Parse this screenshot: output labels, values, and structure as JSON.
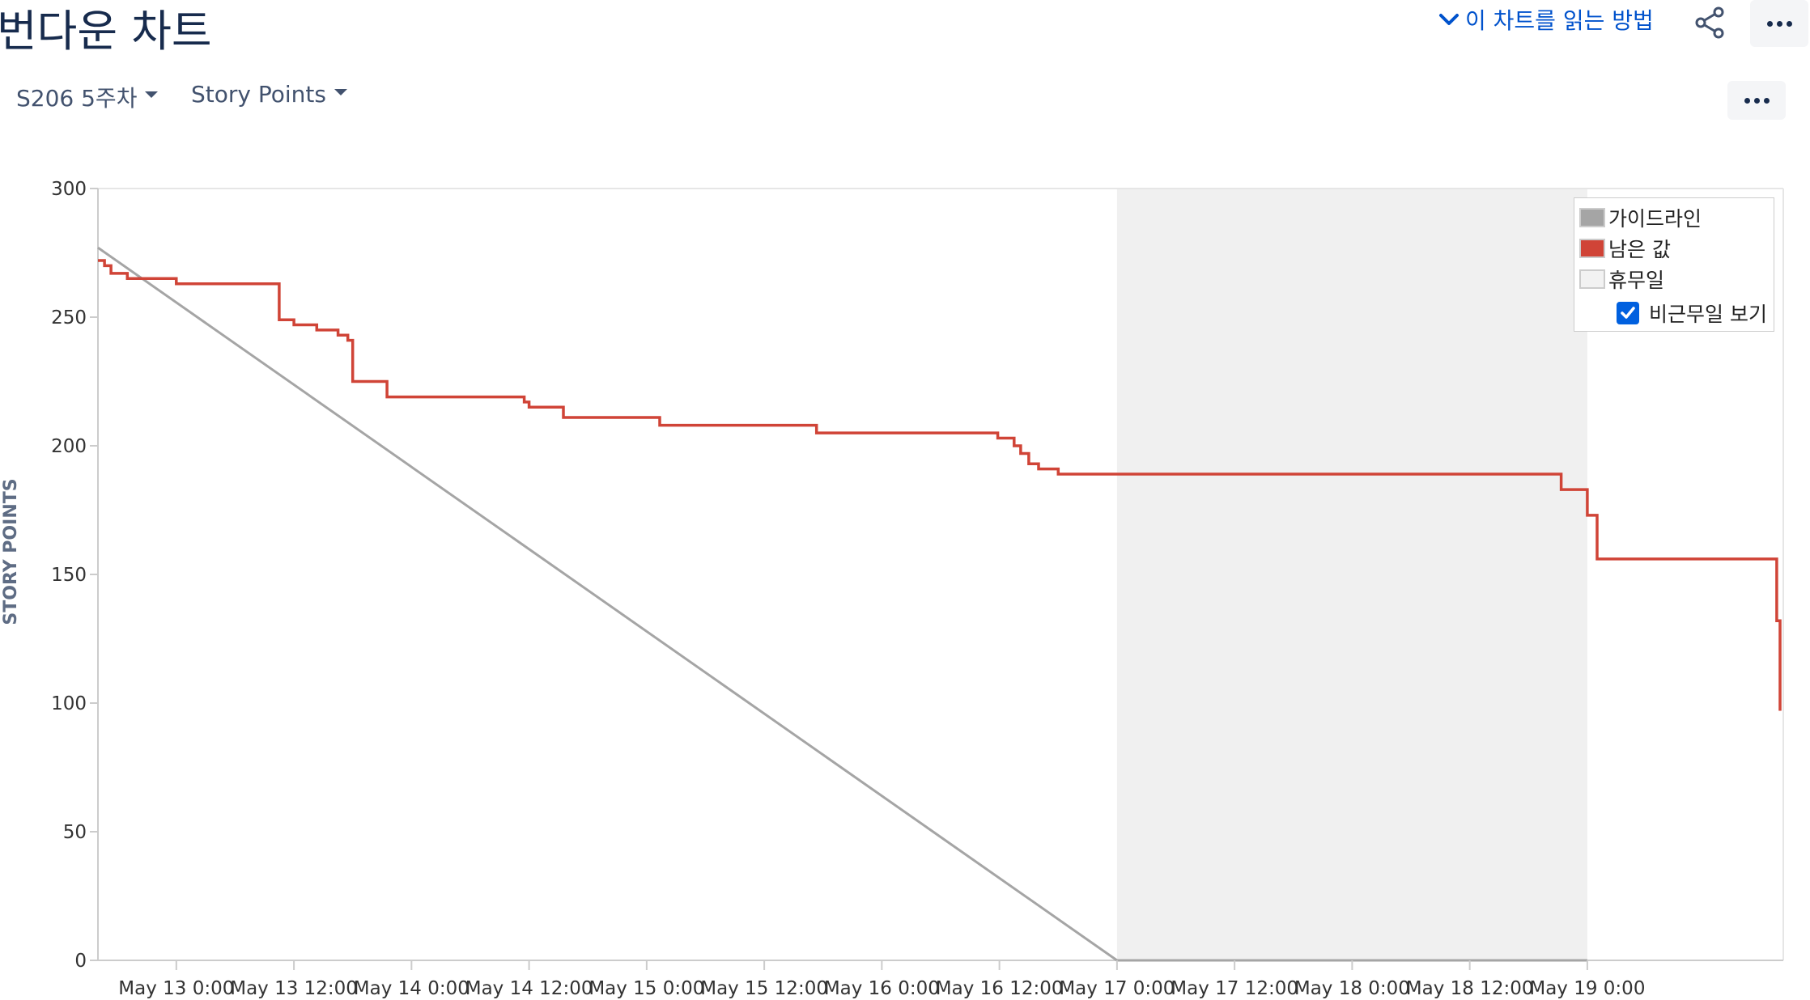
{
  "header": {
    "title": "번다운 차트",
    "help_link": "이 차트를 읽는 방법"
  },
  "filters": {
    "sprint": "S206 5주차",
    "metric": "Story Points"
  },
  "icons": {
    "help": "chevron-down-icon",
    "share": "share-icon",
    "more": "more-icon",
    "check": "check-icon"
  },
  "colors": {
    "guideline": "#a5a5a5",
    "remaining": "#d04437",
    "non_working": "#f0f0f0",
    "link": "#0052cc"
  },
  "legend": {
    "placement": "top-right",
    "items": [
      {
        "label": "가이드라인",
        "color": "#a5a5a5"
      },
      {
        "label": "남은 값",
        "color": "#d04437"
      },
      {
        "label": "휴무일",
        "color": "#f2f2f2"
      }
    ],
    "show_non_working": {
      "label": "비근무일 보기",
      "checked": true
    }
  },
  "chart_data": {
    "type": "line",
    "title": "",
    "xlabel": "",
    "ylabel": "STORY POINTS",
    "x_type": "datetime",
    "xlim": [
      "May 12 16:00",
      "May 19 20:00"
    ],
    "ylim": [
      0,
      300
    ],
    "y_ticks": [
      0,
      50,
      100,
      150,
      200,
      250,
      300
    ],
    "x_ticks": [
      "May 13 0:00",
      "May 13 12:00",
      "May 14 0:00",
      "May 14 12:00",
      "May 15 0:00",
      "May 15 12:00",
      "May 16 0:00",
      "May 16 12:00",
      "May 17 0:00",
      "May 17 12:00",
      "May 18 0:00",
      "May 18 12:00",
      "May 19 0:00"
    ],
    "non_working_periods": [
      [
        "May 17 0:00",
        "May 19 0:00"
      ]
    ],
    "series": [
      {
        "name": "가이드라인",
        "color": "#a5a5a5",
        "points": [
          [
            "May 12 16:00",
            277
          ],
          [
            "May 17 0:00",
            0
          ],
          [
            "May 19 0:00",
            0
          ]
        ]
      },
      {
        "name": "남은 값",
        "color": "#d04437",
        "step": true,
        "points": [
          [
            "May 12 16:00",
            272
          ],
          [
            "May 12 16:40",
            270
          ],
          [
            "May 12 17:20",
            267
          ],
          [
            "May 12 19:00",
            265
          ],
          [
            "May 13 0:00",
            263
          ],
          [
            "May 13 10:30",
            249
          ],
          [
            "May 13 12:00",
            247
          ],
          [
            "May 13 14:20",
            245
          ],
          [
            "May 13 16:30",
            243
          ],
          [
            "May 13 17:30",
            241
          ],
          [
            "May 13 18:00",
            225
          ],
          [
            "May 13 21:30",
            219
          ],
          [
            "May 14 11:30",
            217
          ],
          [
            "May 14 12:00",
            215
          ],
          [
            "May 14 15:30",
            211
          ],
          [
            "May 15 1:20",
            208
          ],
          [
            "May 15 17:20",
            205
          ],
          [
            "May 16 11:50",
            203
          ],
          [
            "May 16 13:30",
            200
          ],
          [
            "May 16 14:10",
            197
          ],
          [
            "May 16 15:00",
            193
          ],
          [
            "May 16 16:00",
            191
          ],
          [
            "May 16 18:00",
            189
          ],
          [
            "May 18 21:20",
            183
          ],
          [
            "May 19 0:00",
            173
          ],
          [
            "May 19 1:00",
            156
          ],
          [
            "May 19 19:20",
            132
          ],
          [
            "May 19 19:40",
            97
          ]
        ]
      }
    ]
  }
}
